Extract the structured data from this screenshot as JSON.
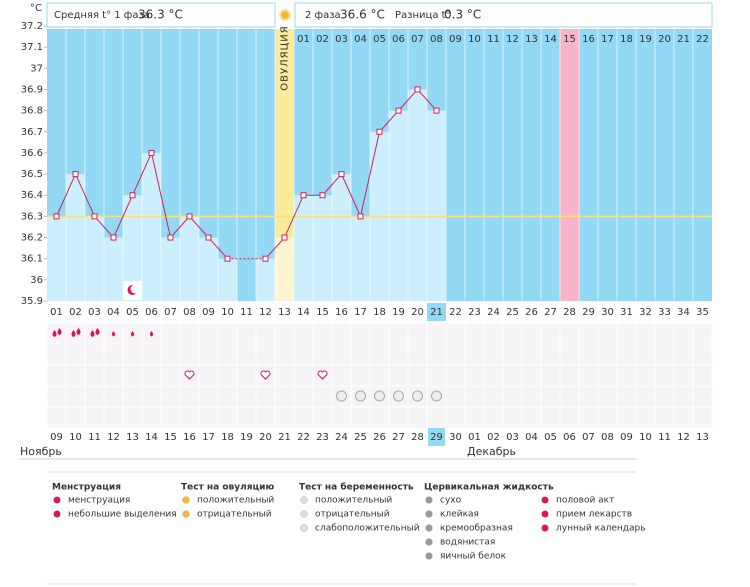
{
  "header": {
    "unit": "°C",
    "phase1_label": "Средняя t° 1 фаза",
    "phase1_value": "36.3 °C",
    "phase2_label": "2 фаза",
    "phase2_value": "36.6 °C",
    "diff_label": "Разница t°",
    "diff_value": "0.3 °C"
  },
  "chart_data": {
    "type": "line",
    "ylim": [
      35.9,
      37.2
    ],
    "yticks": [
      35.9,
      36,
      36.1,
      36.2,
      36.3,
      36.4,
      36.5,
      36.6,
      36.7,
      36.8,
      36.9,
      37,
      37.1,
      37.2
    ],
    "cycle_days": [
      "01",
      "02",
      "03",
      "04",
      "05",
      "06",
      "07",
      "08",
      "09",
      "10",
      "11",
      "12",
      "13",
      "14",
      "15",
      "16",
      "17",
      "18",
      "19",
      "20",
      "21",
      "22",
      "23",
      "24",
      "25",
      "26",
      "27",
      "28",
      "29",
      "30",
      "31",
      "32",
      "33",
      "34",
      "35"
    ],
    "phase_days": [
      null,
      null,
      null,
      null,
      null,
      null,
      null,
      null,
      null,
      null,
      null,
      null,
      "ОВУЛЯЦИЯ",
      "01",
      "02",
      "03",
      "04",
      "05",
      "06",
      "07",
      "08",
      "09",
      "10",
      "11",
      "12",
      "13",
      "14",
      "15",
      "16",
      "17",
      "18",
      "19",
      "20",
      "21",
      "22"
    ],
    "dates": [
      "09",
      "10",
      "11",
      "12",
      "13",
      "14",
      "15",
      "16",
      "17",
      "18",
      "19",
      "20",
      "21",
      "22",
      "23",
      "24",
      "25",
      "26",
      "27",
      "28",
      "29",
      "30",
      "01",
      "02",
      "03",
      "04",
      "05",
      "06",
      "07",
      "08",
      "09",
      "10",
      "11",
      "12",
      "13"
    ],
    "weekend": [
      true,
      true,
      false,
      false,
      false,
      false,
      false,
      true,
      true,
      false,
      false,
      false,
      false,
      false,
      true,
      true,
      false,
      false,
      false,
      false,
      false,
      true,
      true,
      false,
      false,
      false,
      false,
      false,
      true,
      true,
      false,
      false,
      false,
      false,
      false
    ],
    "months": [
      {
        "label": "Ноябрь",
        "day": 1
      },
      {
        "label": "Декабрь",
        "day": 23
      }
    ],
    "values": [
      36.3,
      36.5,
      36.3,
      36.2,
      36.4,
      36.6,
      36.2,
      36.3,
      36.2,
      36.1,
      null,
      36.1,
      36.2,
      36.4,
      36.4,
      36.5,
      36.3,
      36.7,
      36.8,
      36.9,
      36.8,
      null,
      null,
      null,
      null,
      null,
      null,
      null,
      null,
      null,
      null,
      null,
      null,
      null,
      null
    ],
    "coverline": 36.3,
    "ovulation_day": 13,
    "highlight_day": 28,
    "today": 21,
    "line_color": "#d0245a",
    "bar_color": "#cdeefc",
    "background_color": "#93d8f4",
    "menstruation_days": [
      1,
      2,
      3
    ],
    "spotting_days": [
      4,
      5,
      6
    ],
    "intercourse_days": [
      8,
      12,
      15
    ],
    "medication_days": [
      16,
      17,
      18,
      19,
      20,
      21
    ],
    "moon_days": [
      5
    ]
  },
  "legend": [
    {
      "title": "Менструация",
      "items": [
        "менструация",
        "небольшие выделения"
      ]
    },
    {
      "title": "Тест на овуляцию",
      "items": [
        "положительный",
        "отрицательный"
      ]
    },
    {
      "title": "Тест на беременность",
      "items": [
        "положительный",
        "отрицательный",
        "слабоположительный"
      ]
    },
    {
      "title": "Цервикальная жидкость",
      "items": [
        "сухо",
        "клейкая",
        "кремообразная",
        "водянистая",
        "яичный белок"
      ]
    },
    {
      "title": null,
      "items": [
        "половой акт",
        "прием лекарств",
        "лунный календарь"
      ]
    }
  ]
}
